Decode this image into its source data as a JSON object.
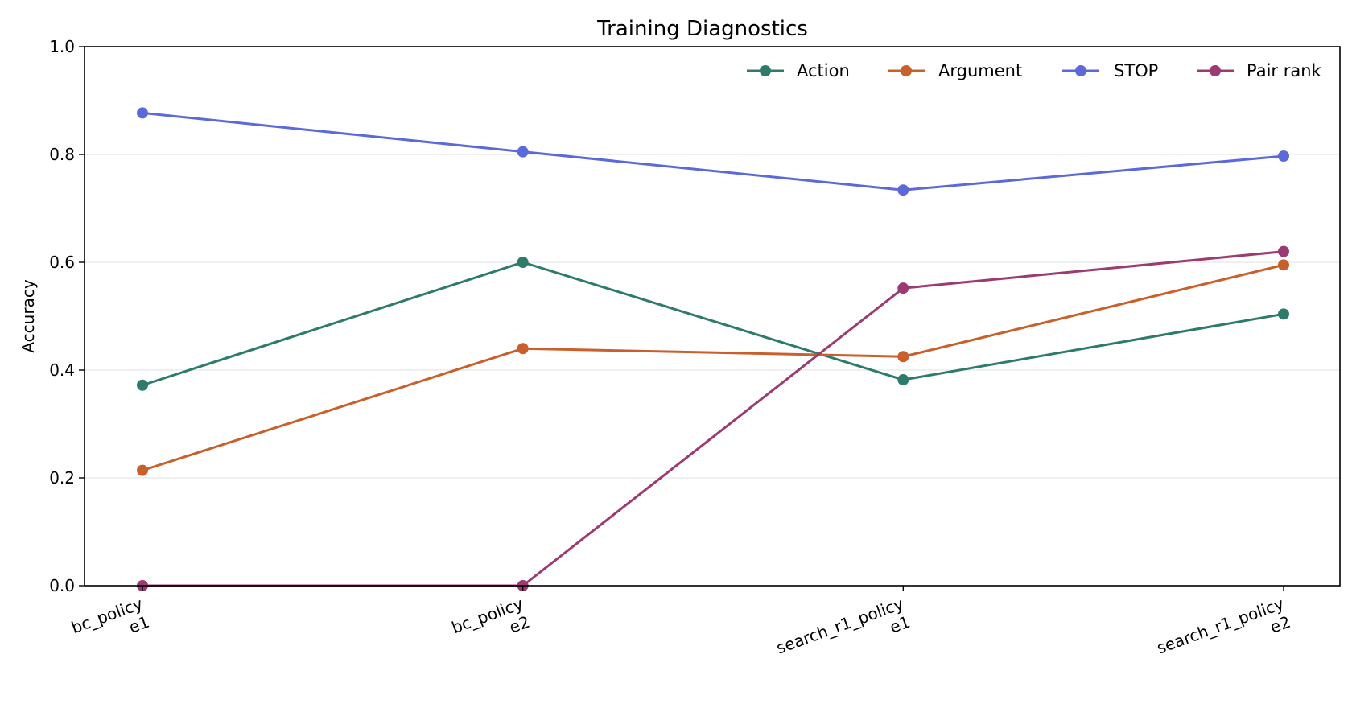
{
  "chart_data": {
    "type": "line",
    "title": "Training Diagnostics",
    "xlabel": "",
    "ylabel": "Accuracy",
    "categories": [
      [
        "bc_policy",
        "e1"
      ],
      [
        "bc_policy",
        "e2"
      ],
      [
        "search_r1_policy",
        "e1"
      ],
      [
        "search_r1_policy",
        "e2"
      ]
    ],
    "ylim": [
      0.0,
      1.0
    ],
    "yticks": [
      "0.0",
      "0.2",
      "0.4",
      "0.6",
      "0.8",
      "1.0"
    ],
    "grid": "horizontal",
    "legend_position": "top-right",
    "series": [
      {
        "name": "Action",
        "color": "#2e7b6b",
        "values": [
          0.372,
          0.6,
          0.382,
          0.504
        ]
      },
      {
        "name": "Argument",
        "color": "#c95f2b",
        "values": [
          0.214,
          0.44,
          0.425,
          0.595
        ]
      },
      {
        "name": "STOP",
        "color": "#5b6ad8",
        "values": [
          0.877,
          0.805,
          0.734,
          0.797
        ]
      },
      {
        "name": "Pair rank",
        "color": "#9c3a72",
        "values": [
          0.0,
          0.0,
          0.552,
          0.62
        ]
      }
    ]
  }
}
